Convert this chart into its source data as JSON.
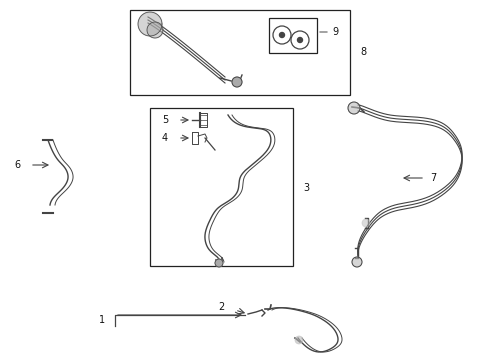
{
  "bg_color": "#ffffff",
  "line_color": "#444444",
  "box_color": "#222222",
  "label_color": "#111111",
  "figsize": [
    4.9,
    3.6
  ],
  "dpi": 100
}
